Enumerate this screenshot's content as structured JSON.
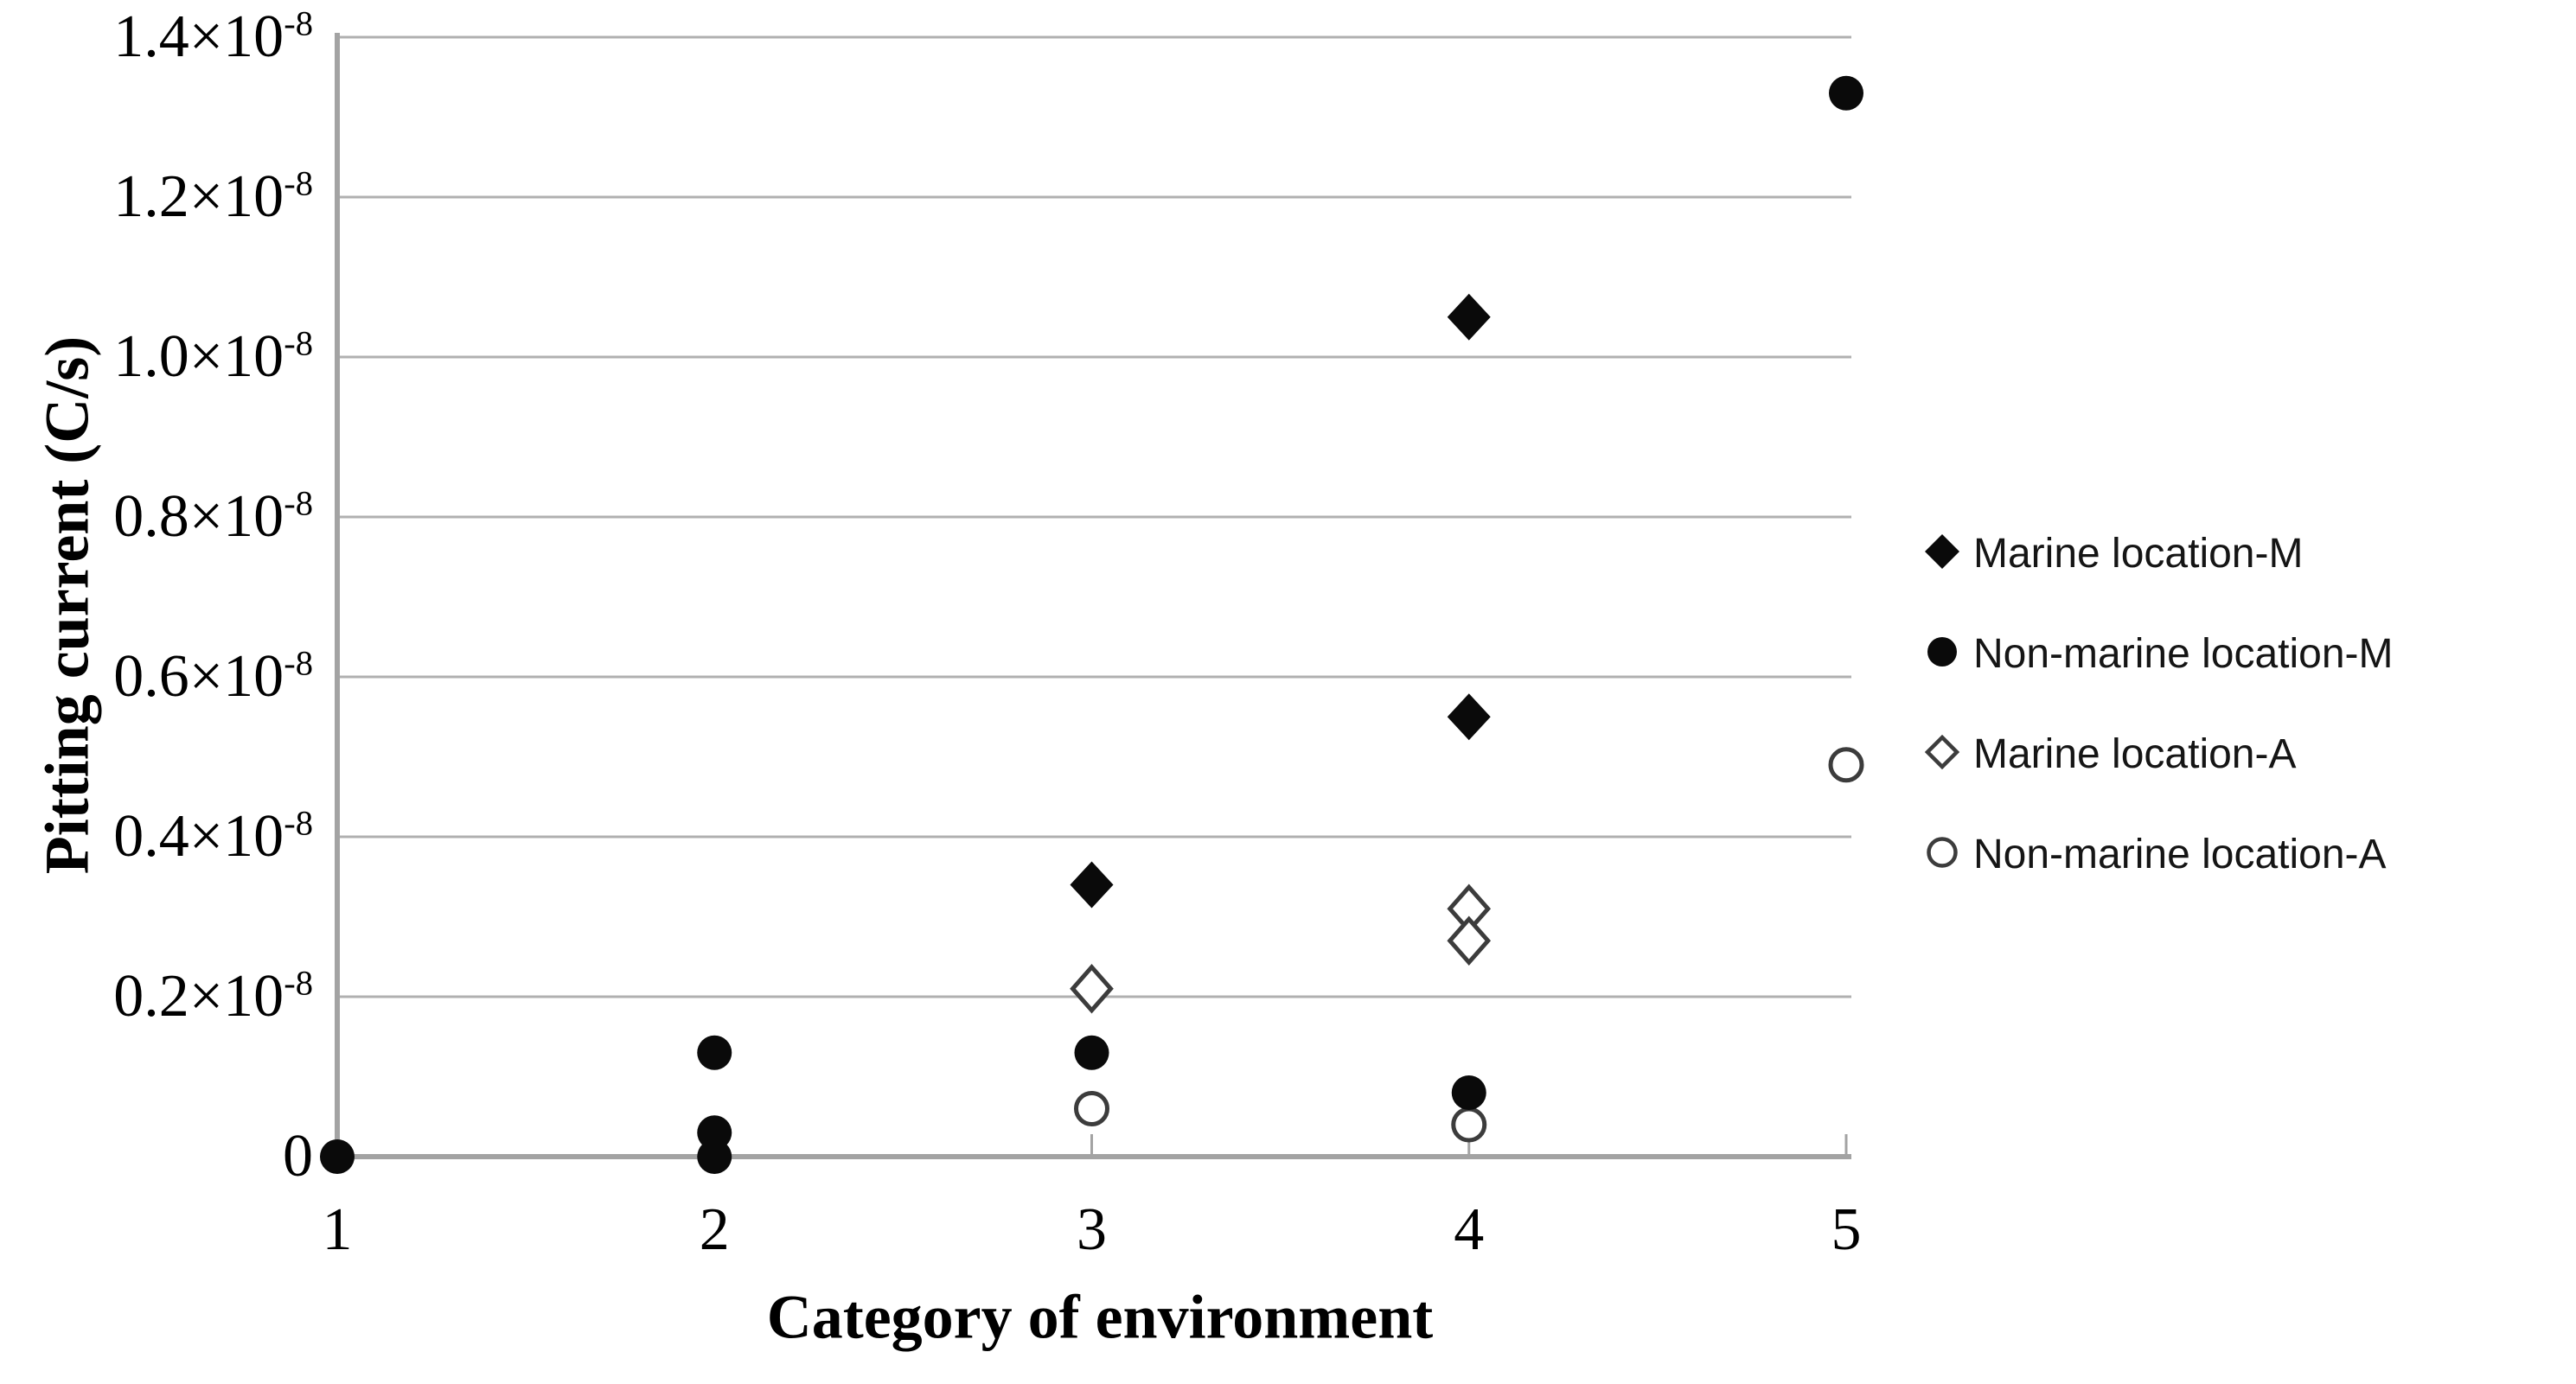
{
  "chart_data": {
    "type": "scatter",
    "title": "",
    "xlabel": "Category of environment",
    "ylabel": "Pitting current (C/s)",
    "x_categories": [
      "1",
      "2",
      "3",
      "4",
      "5"
    ],
    "xlim": [
      1,
      5
    ],
    "ylim": [
      0,
      1.4
    ],
    "y_value_units": "1e-8 C/s (all plotted y values are in units of 10^-8)",
    "grid": "horizontal gridlines every 0.2e-8, no vertical gridlines",
    "legend_position": "right, outside plot",
    "y_ticks": [
      {
        "value": 0,
        "label": "0",
        "sup": ""
      },
      {
        "value": 0.2,
        "label": "0.2×10",
        "sup": "-8"
      },
      {
        "value": 0.4,
        "label": "0.4×10",
        "sup": "-8"
      },
      {
        "value": 0.6,
        "label": "0.6×10",
        "sup": "-8"
      },
      {
        "value": 0.8,
        "label": "0.8×10",
        "sup": "-8"
      },
      {
        "value": 1.0,
        "label": "1.0×10",
        "sup": "-8"
      },
      {
        "value": 1.2,
        "label": "1.2×10",
        "sup": "-8"
      },
      {
        "value": 1.4,
        "label": "1.4×10",
        "sup": "-8"
      }
    ],
    "series": [
      {
        "name": "Marine location-M",
        "marker": "filled-diamond",
        "points": [
          {
            "x": 3,
            "y": 0.34
          },
          {
            "x": 4,
            "y": 1.05
          },
          {
            "x": 4,
            "y": 0.55
          }
        ]
      },
      {
        "name": "Non-marine location-M",
        "marker": "filled-circle",
        "points": [
          {
            "x": 1,
            "y": 0.0
          },
          {
            "x": 2,
            "y": 0.13
          },
          {
            "x": 2,
            "y": 0.03
          },
          {
            "x": 2,
            "y": 0.0
          },
          {
            "x": 3,
            "y": 0.13
          },
          {
            "x": 4,
            "y": 0.08
          },
          {
            "x": 5,
            "y": 1.33
          }
        ]
      },
      {
        "name": "Marine location-A",
        "marker": "open-diamond",
        "points": [
          {
            "x": 3,
            "y": 0.21
          },
          {
            "x": 4,
            "y": 0.31
          },
          {
            "x": 4,
            "y": 0.27
          }
        ]
      },
      {
        "name": "Non-marine location-A",
        "marker": "open-circle",
        "points": [
          {
            "x": 3,
            "y": 0.06
          },
          {
            "x": 4,
            "y": 0.04
          },
          {
            "x": 5,
            "y": 0.49
          }
        ]
      }
    ],
    "colors": {
      "marker_fill": "#0a0a0a",
      "open_marker_stroke": "#3c3c3c",
      "gridline": "#b0b0b0",
      "axis": "#a3a3a3",
      "text": "#000000",
      "background": "#ffffff"
    }
  }
}
